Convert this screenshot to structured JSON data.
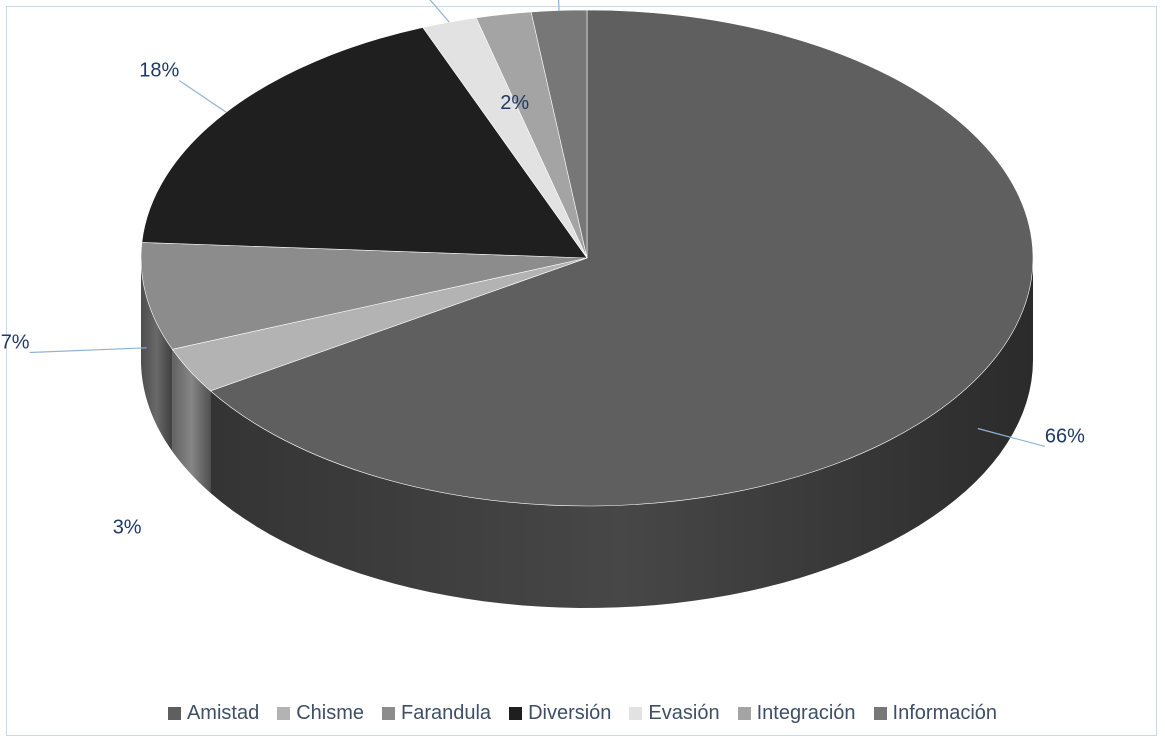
{
  "chart_data": {
    "type": "pie",
    "title": "",
    "categories": [
      "Amistad",
      "Chisme",
      "Farandula",
      "Diversión",
      "Evasión",
      "Integración",
      "Información"
    ],
    "values": [
      66,
      3,
      7,
      18,
      2,
      2,
      2
    ],
    "data_labels": [
      "66%",
      "3%",
      "7%",
      "18%",
      "2%",
      "2%",
      "2%"
    ],
    "colors": [
      "#5f5f5f",
      "#b3b3b3",
      "#8c8c8c",
      "#1f1f1f",
      "#e2e2e2",
      "#a4a4a4",
      "#777777"
    ],
    "legend_position": "bottom",
    "style": "3d"
  }
}
